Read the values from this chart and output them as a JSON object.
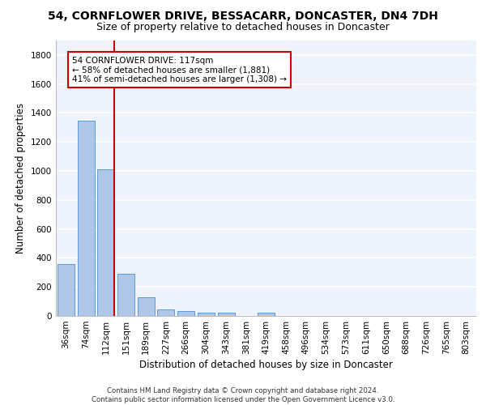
{
  "title_line1": "54, CORNFLOWER DRIVE, BESSACARR, DONCASTER, DN4 7DH",
  "title_line2": "Size of property relative to detached houses in Doncaster",
  "xlabel": "Distribution of detached houses by size in Doncaster",
  "ylabel": "Number of detached properties",
  "footer_line1": "Contains HM Land Registry data © Crown copyright and database right 2024.",
  "footer_line2": "Contains public sector information licensed under the Open Government Licence v3.0.",
  "bin_labels": [
    "36sqm",
    "74sqm",
    "112sqm",
    "151sqm",
    "189sqm",
    "227sqm",
    "266sqm",
    "304sqm",
    "343sqm",
    "381sqm",
    "419sqm",
    "458sqm",
    "496sqm",
    "534sqm",
    "573sqm",
    "611sqm",
    "650sqm",
    "688sqm",
    "726sqm",
    "765sqm",
    "803sqm"
  ],
  "bar_values": [
    355,
    1348,
    1010,
    290,
    127,
    42,
    35,
    25,
    20,
    0,
    25,
    0,
    0,
    0,
    0,
    0,
    0,
    0,
    0,
    0,
    0
  ],
  "bar_color": "#aec6e8",
  "bar_edge_color": "#5b9bd5",
  "property_line_label": "54 CORNFLOWER DRIVE: 117sqm",
  "annotation_line2": "← 58% of detached houses are smaller (1,881)",
  "annotation_line3": "41% of semi-detached houses are larger (1,308) →",
  "annotation_box_color": "#cc0000",
  "property_line_color": "#cc0000",
  "ylim": [
    0,
    1900
  ],
  "yticks": [
    0,
    200,
    400,
    600,
    800,
    1000,
    1200,
    1400,
    1600,
    1800
  ],
  "background_color": "#eef2fb",
  "grid_color": "#ffffff",
  "title_fontsize": 10,
  "subtitle_fontsize": 9,
  "axis_label_fontsize": 8.5,
  "tick_fontsize": 7.5,
  "annotation_fontsize": 7.5,
  "footer_fontsize": 6.2
}
